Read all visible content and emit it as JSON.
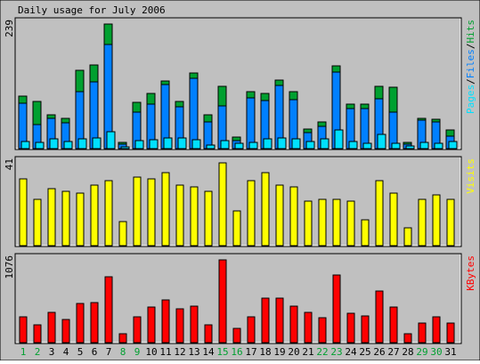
{
  "title": "Daily usage for July 2006",
  "colors": {
    "background": "#c0c0c0",
    "hits": "#00a030",
    "files": "#0080ff",
    "pages": "#00e0ff",
    "visits": "#ffff00",
    "kbytes": "#ff0000",
    "weekday_label": "#000000",
    "weekend_label": "#00a030"
  },
  "chart_data": [
    {
      "type": "bar",
      "title": "Daily usage for July 2006",
      "panel": "top",
      "ymax_label": "239",
      "legend": [
        {
          "name": "Pages",
          "color": "#00e0ff"
        },
        {
          "name": "Files",
          "color": "#0080ff"
        },
        {
          "name": "Hits",
          "color": "#00a030"
        }
      ],
      "categories": [
        "1",
        "2",
        "3",
        "4",
        "5",
        "6",
        "7",
        "8",
        "9",
        "10",
        "11",
        "12",
        "13",
        "14",
        "15",
        "16",
        "17",
        "18",
        "19",
        "20",
        "21",
        "22",
        "23",
        "24",
        "25",
        "26",
        "27",
        "28",
        "29",
        "30",
        "31"
      ],
      "weekend_days": [
        "1",
        "2",
        "8",
        "9",
        "15",
        "16",
        "22",
        "23",
        "29",
        "30"
      ],
      "ylim": [
        0,
        239
      ],
      "series": [
        {
          "name": "Hits",
          "values": [
            100,
            90,
            65,
            58,
            150,
            160,
            239,
            12,
            88,
            105,
            130,
            90,
            145,
            65,
            120,
            22,
            110,
            105,
            132,
            110,
            38,
            52,
            158,
            85,
            85,
            120,
            118,
            12,
            58,
            56,
            35
          ]
        },
        {
          "name": "Files",
          "values": [
            87,
            46,
            58,
            50,
            110,
            128,
            200,
            8,
            70,
            85,
            123,
            80,
            135,
            52,
            82,
            15,
            97,
            92,
            122,
            94,
            30,
            42,
            146,
            77,
            77,
            95,
            70,
            9,
            55,
            52,
            24
          ]
        },
        {
          "name": "Pages",
          "values": [
            14,
            12,
            19,
            13,
            19,
            21,
            32,
            4,
            15,
            17,
            20,
            21,
            17,
            7,
            15,
            10,
            12,
            18,
            20,
            19,
            13,
            18,
            35,
            13,
            11,
            27,
            11,
            5,
            12,
            11,
            14
          ]
        }
      ]
    },
    {
      "type": "bar",
      "panel": "middle",
      "ymax_label": "41",
      "legend": [
        {
          "name": "Visits",
          "color": "#ffff00"
        }
      ],
      "categories": [
        "1",
        "2",
        "3",
        "4",
        "5",
        "6",
        "7",
        "8",
        "9",
        "10",
        "11",
        "12",
        "13",
        "14",
        "15",
        "16",
        "17",
        "18",
        "19",
        "20",
        "21",
        "22",
        "23",
        "24",
        "25",
        "26",
        "27",
        "28",
        "29",
        "30",
        "31"
      ],
      "ylim": [
        0,
        41
      ],
      "series": [
        {
          "name": "Visits",
          "values": [
            33,
            23,
            28,
            27,
            26,
            30,
            32,
            12,
            34,
            33,
            36,
            30,
            29,
            27,
            41,
            17,
            32,
            36,
            30,
            29,
            22,
            23,
            23,
            22,
            13,
            32,
            26,
            9,
            23,
            25,
            23
          ]
        }
      ]
    },
    {
      "type": "bar",
      "panel": "bottom",
      "ymax_label": "1076",
      "legend": [
        {
          "name": "KBytes",
          "color": "#ff0000"
        }
      ],
      "categories": [
        "1",
        "2",
        "3",
        "4",
        "5",
        "6",
        "7",
        "8",
        "9",
        "10",
        "11",
        "12",
        "13",
        "14",
        "15",
        "16",
        "17",
        "18",
        "19",
        "20",
        "21",
        "22",
        "23",
        "24",
        "25",
        "26",
        "27",
        "28",
        "29",
        "30",
        "31"
      ],
      "ylim": [
        0,
        1076
      ],
      "series": [
        {
          "name": "KBytes",
          "values": [
            340,
            230,
            390,
            300,
            510,
            520,
            860,
            110,
            340,
            460,
            560,
            440,
            470,
            230,
            1076,
            180,
            330,
            580,
            580,
            480,
            390,
            320,
            880,
            380,
            350,
            670,
            460,
            110,
            250,
            340,
            260
          ]
        }
      ]
    }
  ]
}
